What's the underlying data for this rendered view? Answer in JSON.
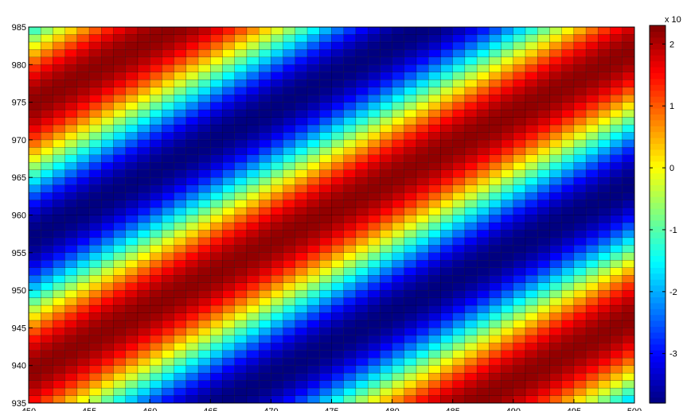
{
  "chart_data": {
    "type": "heatmap",
    "title": "",
    "xlabel": "",
    "ylabel": "",
    "xlim": [
      450,
      500
    ],
    "ylim": [
      935,
      985
    ],
    "x_ticks": [
      {
        "value": 450,
        "label": "450"
      },
      {
        "value": 455,
        "label": "455"
      },
      {
        "value": 460,
        "label": "460"
      },
      {
        "value": 465,
        "label": "465"
      },
      {
        "value": 470,
        "label": "470"
      },
      {
        "value": 475,
        "label": "475"
      },
      {
        "value": 480,
        "label": "480"
      },
      {
        "value": 485,
        "label": "485"
      },
      {
        "value": 490,
        "label": "490"
      },
      {
        "value": 495,
        "label": "495"
      },
      {
        "value": 500,
        "label": "500"
      }
    ],
    "y_ticks": [
      {
        "value": 935,
        "label": "935"
      },
      {
        "value": 940,
        "label": "940"
      },
      {
        "value": 945,
        "label": "945"
      },
      {
        "value": 950,
        "label": "950"
      },
      {
        "value": 955,
        "label": "955"
      },
      {
        "value": 960,
        "label": "960"
      },
      {
        "value": 965,
        "label": "965"
      },
      {
        "value": 970,
        "label": "970"
      },
      {
        "value": 975,
        "label": "975"
      },
      {
        "value": 980,
        "label": "980"
      },
      {
        "value": 985,
        "label": "985"
      }
    ],
    "colormap": "jet",
    "mesh_edges": true,
    "grid_resolution": 1,
    "field": {
      "description": "Diagonal sinusoidal ridge: peak band runs from (450, 939) to (500, 982)",
      "ridge_x": [
        450,
        500
      ],
      "ridge_y": [
        939,
        982
      ],
      "period_across_band": 27,
      "peak_value": 2.2,
      "trough_value": -3.8
    },
    "colorbar": {
      "exponent_label": "x 10",
      "clim": [
        -3.8,
        2.3
      ],
      "ticks": [
        {
          "value": 2,
          "label": "2"
        },
        {
          "value": 1,
          "label": "1"
        },
        {
          "value": 0,
          "label": "0"
        },
        {
          "value": -1,
          "label": "-1"
        },
        {
          "value": -2,
          "label": "-2"
        },
        {
          "value": -3,
          "label": "-3"
        }
      ]
    }
  }
}
